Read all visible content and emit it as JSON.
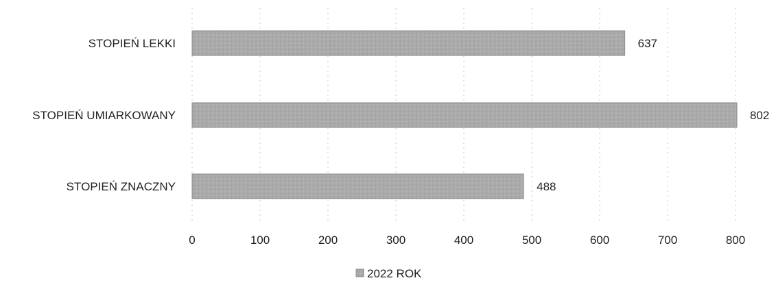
{
  "chart_data": {
    "type": "bar",
    "orientation": "horizontal",
    "categories": [
      "STOPIEŃ LEKKI",
      "STOPIEŃ UMIARKOWANY",
      "STOPIEŃ ZNACZNY"
    ],
    "series": [
      {
        "name": "2022 ROK",
        "values": [
          637,
          802,
          488
        ]
      }
    ],
    "xlim": [
      0,
      800
    ],
    "xticks": [
      "0",
      "100",
      "200",
      "300",
      "400",
      "500",
      "600",
      "700",
      "800"
    ],
    "grid": true,
    "legend": "bottom-center",
    "colors": {
      "bar": "#a8a8a8",
      "bar_border": "#8a8a8a",
      "text": "#222222",
      "grid": "#c8c8c8"
    }
  }
}
